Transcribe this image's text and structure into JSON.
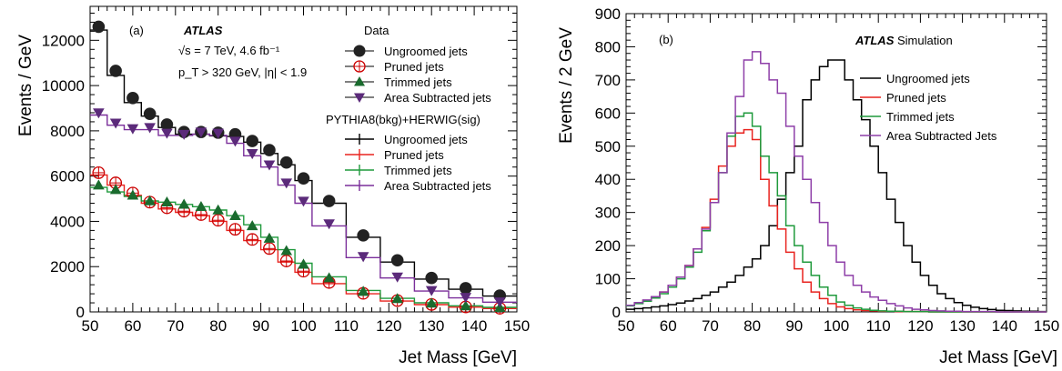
{
  "chart_data": [
    {
      "type": "line",
      "panel_label": "(a)",
      "experiment": "ATLAS",
      "info_lines": [
        "√s = 7 TeV, 4.6 fb⁻¹",
        "p_T > 320 GeV, |η| < 1.9"
      ],
      "xlabel": "Jet Mass [GeV]",
      "ylabel": "Events / GeV",
      "xlim": [
        50,
        150
      ],
      "ylim": [
        0,
        13500
      ],
      "x_ticks": [
        50,
        60,
        70,
        80,
        90,
        100,
        110,
        120,
        130,
        140,
        150
      ],
      "y_ticks": [
        0,
        2000,
        4000,
        6000,
        8000,
        10000,
        12000
      ],
      "legend_placement": "top-right",
      "data_header": "Data",
      "mc_header": "PYTHIA8(bkg)+HERWIG(sig)",
      "data_series": [
        {
          "name": "Ungroomed jets",
          "marker": "circle",
          "color": "#222222",
          "x": [
            52,
            56,
            60,
            64,
            68,
            72,
            76,
            80,
            84,
            88,
            92,
            96,
            100,
            106,
            114,
            122,
            130,
            138,
            146
          ],
          "values": [
            12600,
            10650,
            9450,
            8750,
            8280,
            7950,
            7950,
            7920,
            7850,
            7550,
            7150,
            6600,
            5900,
            4900,
            3380,
            2280,
            1500,
            1050,
            720
          ]
        },
        {
          "name": "Pruned jets",
          "marker": "open-circle",
          "color": "#cc0000",
          "x": [
            52,
            56,
            60,
            64,
            68,
            72,
            76,
            80,
            84,
            88,
            92,
            96,
            100,
            106,
            114,
            122,
            130,
            138,
            146
          ],
          "values": [
            6150,
            5700,
            5250,
            4850,
            4600,
            4450,
            4300,
            4050,
            3650,
            3200,
            2800,
            2250,
            1800,
            1300,
            820,
            500,
            330,
            220,
            160
          ]
        },
        {
          "name": "Trimmed jets",
          "marker": "triangle-up",
          "color": "#1a6b2e",
          "x": [
            52,
            56,
            60,
            64,
            68,
            72,
            76,
            80,
            84,
            88,
            92,
            96,
            100,
            106,
            114,
            122,
            130,
            138,
            146
          ],
          "values": [
            5600,
            5400,
            5150,
            4900,
            4850,
            4750,
            4650,
            4500,
            4250,
            3800,
            3250,
            2700,
            2100,
            1500,
            900,
            580,
            380,
            260,
            190
          ]
        },
        {
          "name": "Area Subtracted jets",
          "marker": "triangle-down",
          "color": "#5b2a7a",
          "x": [
            52,
            56,
            60,
            64,
            68,
            72,
            76,
            80,
            84,
            88,
            92,
            96,
            100,
            106,
            114,
            122,
            130,
            138,
            146
          ],
          "values": [
            8800,
            8350,
            8100,
            8150,
            7900,
            7850,
            7950,
            7900,
            7550,
            7000,
            6500,
            5700,
            4900,
            3900,
            2450,
            1550,
            950,
            650,
            450
          ]
        }
      ],
      "mc_series": [
        {
          "name": "Ungroomed jets",
          "color": "#000000",
          "edges": [
            50,
            54,
            58,
            62,
            66,
            70,
            74,
            78,
            82,
            86,
            90,
            94,
            98,
            102,
            110,
            118,
            126,
            134,
            142,
            150
          ],
          "values": [
            12450,
            10450,
            9250,
            8650,
            8150,
            7850,
            7850,
            7780,
            7750,
            7500,
            7000,
            6500,
            5800,
            4800,
            3300,
            2200,
            1450,
            1000,
            700
          ]
        },
        {
          "name": "Pruned jets",
          "color": "#e8231f",
          "edges": [
            50,
            54,
            58,
            62,
            66,
            70,
            74,
            78,
            82,
            86,
            90,
            94,
            98,
            102,
            110,
            118,
            126,
            134,
            142,
            150
          ],
          "values": [
            6050,
            5600,
            5150,
            4800,
            4550,
            4400,
            4250,
            4000,
            3600,
            3150,
            2750,
            2200,
            1750,
            1250,
            800,
            480,
            320,
            210,
            150
          ]
        },
        {
          "name": "Trimmed jets",
          "color": "#1f9a3c",
          "edges": [
            50,
            54,
            58,
            62,
            66,
            70,
            74,
            78,
            82,
            86,
            90,
            94,
            98,
            102,
            110,
            118,
            126,
            134,
            142,
            150
          ],
          "values": [
            5500,
            5300,
            5100,
            4900,
            4850,
            4750,
            4650,
            4500,
            4250,
            3850,
            3300,
            2750,
            2150,
            1550,
            950,
            600,
            400,
            270,
            200
          ]
        },
        {
          "name": "Area Subtracted jets",
          "color": "#7a2e9a",
          "edges": [
            50,
            54,
            58,
            62,
            66,
            70,
            74,
            78,
            82,
            86,
            90,
            94,
            98,
            102,
            110,
            118,
            126,
            134,
            142,
            150
          ],
          "values": [
            8700,
            8250,
            8050,
            8050,
            7800,
            7800,
            7850,
            7800,
            7450,
            6900,
            6400,
            5600,
            4800,
            3800,
            2400,
            1500,
            920,
            620,
            430
          ]
        }
      ]
    },
    {
      "type": "line",
      "panel_label": "(b)",
      "experiment": "ATLAS",
      "experiment_suffix": "Simulation",
      "xlabel": "Jet Mass [GeV]",
      "ylabel": "Events / 2 GeV",
      "xlim": [
        50,
        150
      ],
      "ylim": [
        0,
        900
      ],
      "x_ticks": [
        50,
        60,
        70,
        80,
        90,
        100,
        110,
        120,
        130,
        140,
        150
      ],
      "y_ticks": [
        0,
        100,
        200,
        300,
        400,
        500,
        600,
        700,
        800,
        900
      ],
      "bin_width": 2,
      "legend_placement": "top-right",
      "series": [
        {
          "name": "Ungroomed jets",
          "color": "#000000",
          "values": [
            8,
            10,
            12,
            15,
            18,
            22,
            27,
            33,
            40,
            50,
            60,
            75,
            90,
            110,
            135,
            160,
            200,
            260,
            340,
            420,
            500,
            640,
            700,
            740,
            760,
            760,
            700,
            640,
            580,
            500,
            420,
            340,
            270,
            200,
            150,
            110,
            80,
            55,
            40,
            28,
            20,
            14,
            10,
            7,
            5,
            4,
            3,
            2,
            2,
            1
          ]
        },
        {
          "name": "Pruned jets",
          "color": "#e8231f",
          "values": [
            20,
            28,
            35,
            45,
            60,
            80,
            105,
            140,
            190,
            255,
            340,
            440,
            500,
            540,
            550,
            520,
            400,
            320,
            250,
            180,
            130,
            90,
            60,
            40,
            25,
            15,
            10,
            6,
            4,
            3,
            2,
            2,
            1,
            1,
            1,
            1,
            0,
            0,
            0,
            0,
            0,
            0,
            0,
            0,
            0,
            0,
            0,
            0,
            0,
            0
          ]
        },
        {
          "name": "Trimmed jets",
          "color": "#1f9a3c",
          "values": [
            18,
            25,
            32,
            42,
            55,
            75,
            100,
            135,
            180,
            245,
            330,
            420,
            530,
            590,
            600,
            560,
            470,
            420,
            350,
            260,
            200,
            150,
            110,
            75,
            50,
            30,
            20,
            12,
            8,
            5,
            3,
            2,
            2,
            1,
            1,
            1,
            0,
            0,
            0,
            0,
            0,
            0,
            0,
            0,
            0,
            0,
            0,
            0,
            0,
            0
          ]
        },
        {
          "name": "Area Subtracted Jets",
          "color": "#8e3fa8",
          "values": [
            20,
            28,
            36,
            46,
            60,
            80,
            105,
            140,
            190,
            250,
            330,
            420,
            540,
            650,
            760,
            785,
            750,
            700,
            660,
            560,
            470,
            400,
            330,
            270,
            200,
            150,
            110,
            80,
            60,
            45,
            35,
            25,
            18,
            12,
            8,
            6,
            4,
            3,
            2,
            2,
            1,
            1,
            1,
            1,
            0,
            0,
            0,
            0,
            0,
            0
          ]
        }
      ]
    }
  ]
}
